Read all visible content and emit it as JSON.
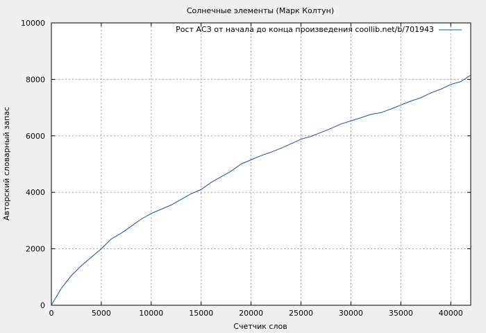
{
  "chart_data": {
    "type": "line",
    "title": "Солнечные элементы (Марк Колтун)",
    "xlabel": "Счетчик слов",
    "ylabel": "Авторский словарный запас",
    "xlim": [
      0,
      42000
    ],
    "ylim": [
      0,
      10000
    ],
    "xticks": [
      0,
      5000,
      10000,
      15000,
      20000,
      25000,
      30000,
      35000,
      40000
    ],
    "yticks": [
      0,
      2000,
      4000,
      6000,
      8000,
      10000
    ],
    "grid": true,
    "legend_position": "top-right",
    "series": [
      {
        "name": "Рост АСЗ от начала до конца произведения coollib.net/b/701943",
        "color": "#1a4fa0",
        "x": [
          0,
          500,
          1000,
          2000,
          3000,
          4000,
          5000,
          6000,
          7000,
          8000,
          9000,
          10000,
          11000,
          12000,
          13000,
          14000,
          15000,
          16000,
          17000,
          18000,
          19000,
          20000,
          21000,
          22000,
          23000,
          24000,
          25000,
          26000,
          27000,
          28000,
          29000,
          30000,
          31000,
          32000,
          33000,
          34000,
          35000,
          36000,
          37000,
          38000,
          39000,
          40000,
          41000,
          42000
        ],
        "y": [
          0,
          300,
          600,
          1050,
          1400,
          1700,
          2000,
          2350,
          2550,
          2800,
          3050,
          3250,
          3400,
          3550,
          3750,
          3950,
          4100,
          4350,
          4550,
          4750,
          5000,
          5150,
          5300,
          5420,
          5560,
          5720,
          5880,
          5980,
          6120,
          6260,
          6420,
          6530,
          6640,
          6760,
          6820,
          6950,
          7090,
          7230,
          7350,
          7520,
          7650,
          7820,
          7920,
          8150
        ]
      }
    ]
  }
}
